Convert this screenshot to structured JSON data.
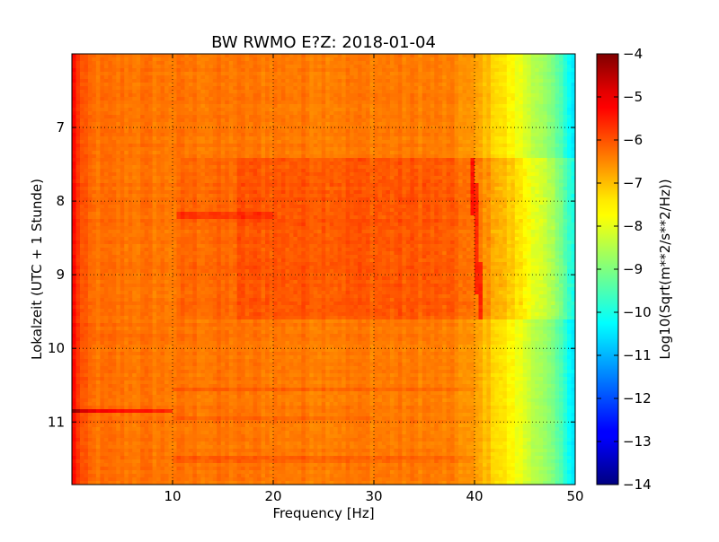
{
  "chart_data": {
    "type": "heatmap",
    "title": "BW RWMO E?Z: 2018-01-04",
    "xlabel": "Frequency [Hz]",
    "ylabel": "Lokalzeit (UTC + 1 Stunde)",
    "colorbar_label": "Log10(Sqrt(m**2/s**2/Hz))",
    "xlim": [
      0,
      50
    ],
    "ylim": [
      6.0,
      11.85
    ],
    "y_inverted": true,
    "x_ticks": [
      10,
      20,
      30,
      40,
      50
    ],
    "y_ticks": [
      7,
      8,
      9,
      10,
      11
    ],
    "x_tick_labels": [
      "10",
      "20",
      "30",
      "40",
      "50"
    ],
    "y_tick_labels": [
      "7",
      "8",
      "9",
      "10",
      "11"
    ],
    "colorbar_range": [
      -14,
      -4
    ],
    "colorbar_ticks": [
      -4,
      -5,
      -6,
      -7,
      -8,
      -9,
      -10,
      -11,
      -12,
      -13,
      -14
    ],
    "colorbar_tick_labels": [
      "−4",
      "−5",
      "−6",
      "−7",
      "−8",
      "−9",
      "−10",
      "−11",
      "−12",
      "−13",
      "−14"
    ],
    "colormap": "jet",
    "grid": true,
    "frequency_profile": [
      {
        "f": 0.0,
        "v": -5.2
      },
      {
        "f": 0.5,
        "v": -5.6
      },
      {
        "f": 1.0,
        "v": -6.1
      },
      {
        "f": 2.0,
        "v": -6.35
      },
      {
        "f": 10.0,
        "v": -6.4
      },
      {
        "f": 35.0,
        "v": -6.45
      },
      {
        "f": 38.0,
        "v": -6.55
      },
      {
        "f": 40.0,
        "v": -6.8
      },
      {
        "f": 42.0,
        "v": -7.3
      },
      {
        "f": 44.0,
        "v": -7.8
      },
      {
        "f": 46.0,
        "v": -8.4
      },
      {
        "f": 48.0,
        "v": -9.2
      },
      {
        "f": 49.0,
        "v": -9.8
      },
      {
        "f": 50.0,
        "v": -10.5
      }
    ],
    "features": [
      {
        "kind": "time_band",
        "t_start": 7.42,
        "t_end": 9.62,
        "f_start": 16.5,
        "f_end": 40.5,
        "delta": 0.35
      },
      {
        "kind": "time_band",
        "t_start": 7.42,
        "t_end": 9.62,
        "f_start": 11.0,
        "f_end": 16.5,
        "delta": 0.15
      },
      {
        "kind": "time_band",
        "t_start": 7.42,
        "t_end": 9.62,
        "f_start": 40.5,
        "f_end": 50.0,
        "delta": 0.45
      },
      {
        "kind": "tone_line",
        "t_start": 7.42,
        "t_end": 9.62,
        "f_start": 39.8,
        "f_end": 40.6,
        "delta": 0.9
      },
      {
        "kind": "transient",
        "t": 10.85,
        "f_start": 0.0,
        "f_end": 10.0,
        "delta": 1.3
      },
      {
        "kind": "transient",
        "t": 8.18,
        "f_start": 10.5,
        "f_end": 20.0,
        "delta": 0.6
      },
      {
        "kind": "transient",
        "t": 10.55,
        "f_start": 10.0,
        "f_end": 40.0,
        "delta": 0.3
      },
      {
        "kind": "transient",
        "t": 11.5,
        "f_start": 10.0,
        "f_end": 40.0,
        "delta": 0.25
      },
      {
        "kind": "transient",
        "t": 10.95,
        "f_start": 10.0,
        "f_end": 30.0,
        "delta": 0.2
      }
    ]
  }
}
